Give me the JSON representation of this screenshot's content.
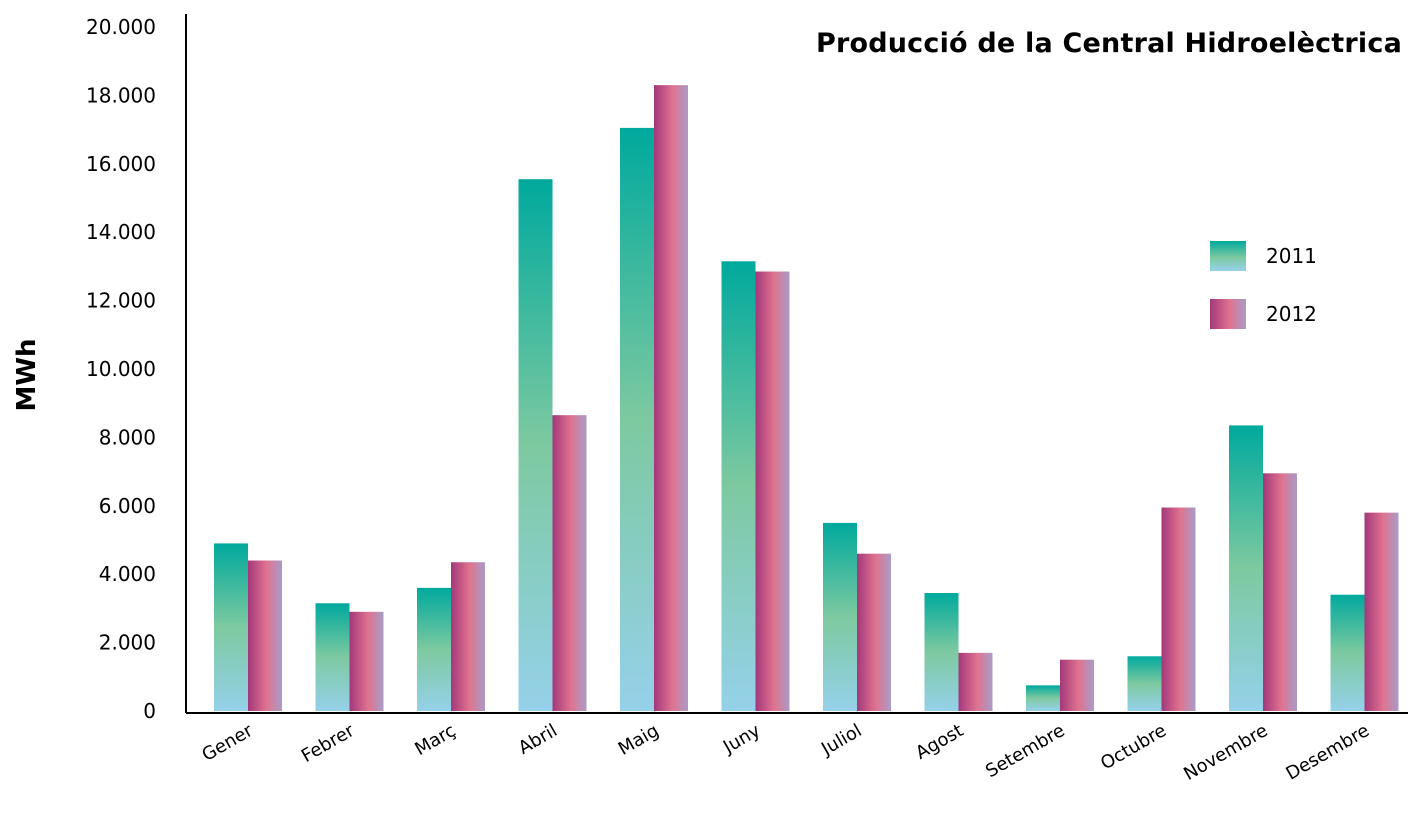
{
  "chart_data": {
    "type": "bar",
    "title": "Producció de la Central Hidroelèctrica",
    "ylabel": "MWh",
    "xlabel": "",
    "ylim": [
      0,
      20000
    ],
    "yticks": [
      "0",
      "2.000",
      "4.000",
      "6.000",
      "8.000",
      "10.000",
      "12.000",
      "14.000",
      "16.000",
      "18.000",
      "20.000"
    ],
    "categories": [
      "Gener",
      "Febrer",
      "Març",
      "Abril",
      "Maig",
      "Juny",
      "Juliol",
      "Agost",
      "Setembre",
      "Octubre",
      "Novembre",
      "Desembre"
    ],
    "series": [
      {
        "name": "2011",
        "values": [
          4900,
          3150,
          3600,
          15550,
          17050,
          13150,
          5500,
          3450,
          750,
          1600,
          8350,
          3400
        ]
      },
      {
        "name": "2012",
        "values": [
          4400,
          2900,
          4350,
          8650,
          18300,
          12850,
          4600,
          1700,
          1500,
          5950,
          6950,
          5800
        ]
      }
    ],
    "legend_position": "right",
    "grid": false,
    "colors": {
      "2011_top": "#00a99d",
      "2011_mid": "#7dc9a0",
      "2011_bottom": "#95d1ea",
      "2012_left": "#a3387a",
      "2012_mid": "#e0738f",
      "2012_right": "#a89cc8"
    }
  }
}
